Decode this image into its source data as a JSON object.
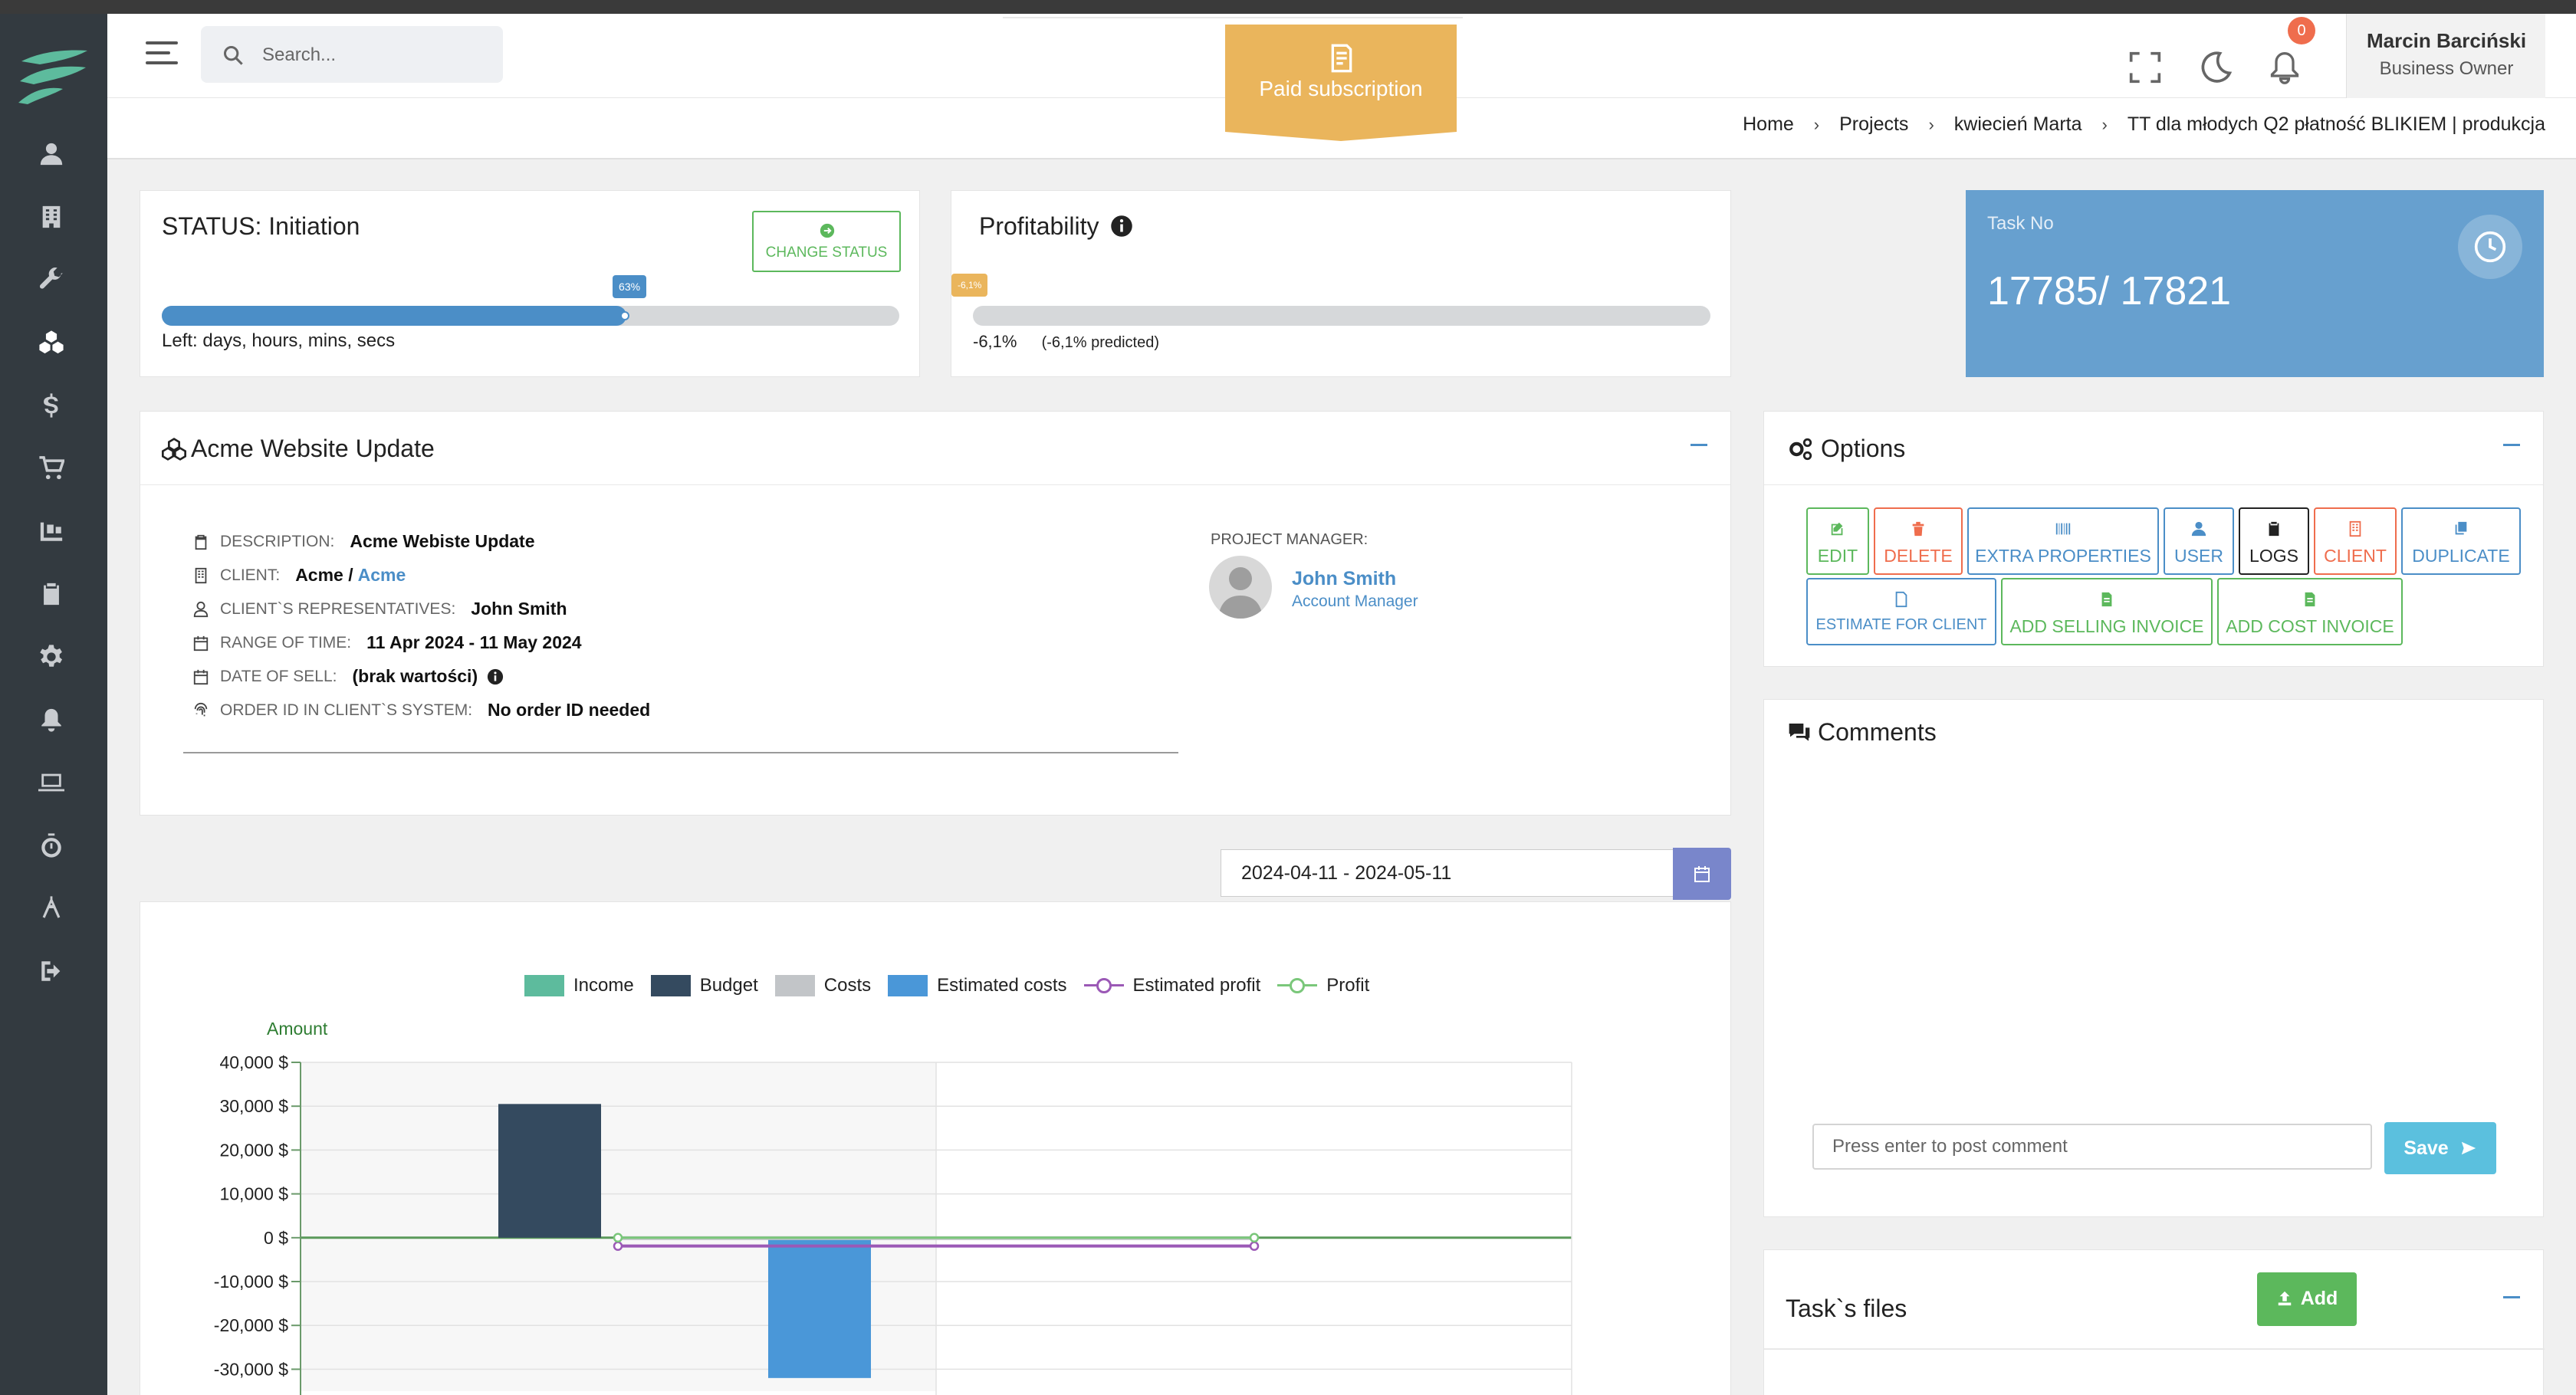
{
  "topbar": {
    "search_placeholder": "Search...",
    "ribbon_label": "Paid subscription",
    "notification_count": "0",
    "user_name": "Marcin Barciński",
    "user_role": "Business Owner"
  },
  "breadcrumb": [
    "Home",
    "Projects",
    "kwiecień Marta",
    "TT dla młodych Q2 płatność BLIKIEM | produkcja"
  ],
  "status": {
    "title": "STATUS: Initiation",
    "change_label": "CHANGE STATUS",
    "progress_percent": 63,
    "progress_tag": "63%",
    "left_text": "Left: days, hours, mins, secs"
  },
  "profitability": {
    "title": "Profitability",
    "tag": "-6,1%",
    "value": "-6,1%",
    "predicted": "(-6,1% predicted)"
  },
  "task": {
    "label": "Task No",
    "number": "17785/ 17821"
  },
  "project": {
    "title": "Acme Website Update",
    "description_label": "DESCRIPTION:",
    "description": "Acme Webiste Update",
    "client_label": "CLIENT:",
    "client_name": "Acme /",
    "client_link": "Acme",
    "reps_label": "CLIENT`S REPRESENTATIVES:",
    "reps": "John Smith",
    "range_label": "RANGE OF TIME:",
    "range": "11 Apr 2024 - 11 May 2024",
    "sell_label": "DATE OF SELL:",
    "sell": "(brak wartości)",
    "order_label": "ORDER ID IN CLIENT`S SYSTEM:",
    "order": "No order ID needed",
    "pm_label": "PROJECT MANAGER:",
    "pm_name": "John Smith",
    "pm_role": "Account Manager"
  },
  "options": {
    "title": "Options",
    "buttons": {
      "edit": "EDIT",
      "delete": "DELETE",
      "extra": "EXTRA PROPERTIES",
      "user": "USER",
      "logs": "LOGS",
      "client": "CLIENT",
      "duplicate": "DUPLICATE",
      "estimate": "ESTIMATE FOR CLIENT",
      "selling": "ADD SELLING INVOICE",
      "cost": "ADD COST INVOICE"
    }
  },
  "comments": {
    "title": "Comments",
    "placeholder": "Press enter to post comment",
    "save_label": "Save"
  },
  "files": {
    "title": "Task`s files",
    "add_label": "Add"
  },
  "date_range": "2024-04-11 - 2024-05-11",
  "colors": {
    "income": "#5dbb9d",
    "budget": "#344a5f",
    "costs": "#c2c5c8",
    "estimated_costs": "#4a97d8",
    "estimated_profit": "#9b59b6",
    "profit": "#7ac77a",
    "accent": "#4b8ec7"
  },
  "chart_data": {
    "type": "bar",
    "ylabel": "Amount",
    "legend": [
      "Income",
      "Budget",
      "Costs",
      "Estimated costs",
      "Estimated profit",
      "Profit"
    ],
    "yticks": [
      "40,000 $",
      "30,000 $",
      "20,000 $",
      "10,000 $",
      "0 $",
      "-10,000 $",
      "-20,000 $",
      "-30,000 $"
    ],
    "ylim": [
      -35000,
      40000
    ],
    "series": [
      {
        "name": "Income",
        "values": [
          0,
          0
        ]
      },
      {
        "name": "Budget",
        "values": [
          30500,
          0
        ]
      },
      {
        "name": "Costs",
        "values": [
          0,
          0
        ]
      },
      {
        "name": "Estimated costs",
        "values": [
          0,
          -32000
        ]
      },
      {
        "name": "Estimated profit",
        "values": [
          -1900,
          -1900
        ]
      },
      {
        "name": "Profit",
        "values": [
          0,
          0
        ]
      }
    ],
    "grid": true,
    "legend_position": "top"
  }
}
